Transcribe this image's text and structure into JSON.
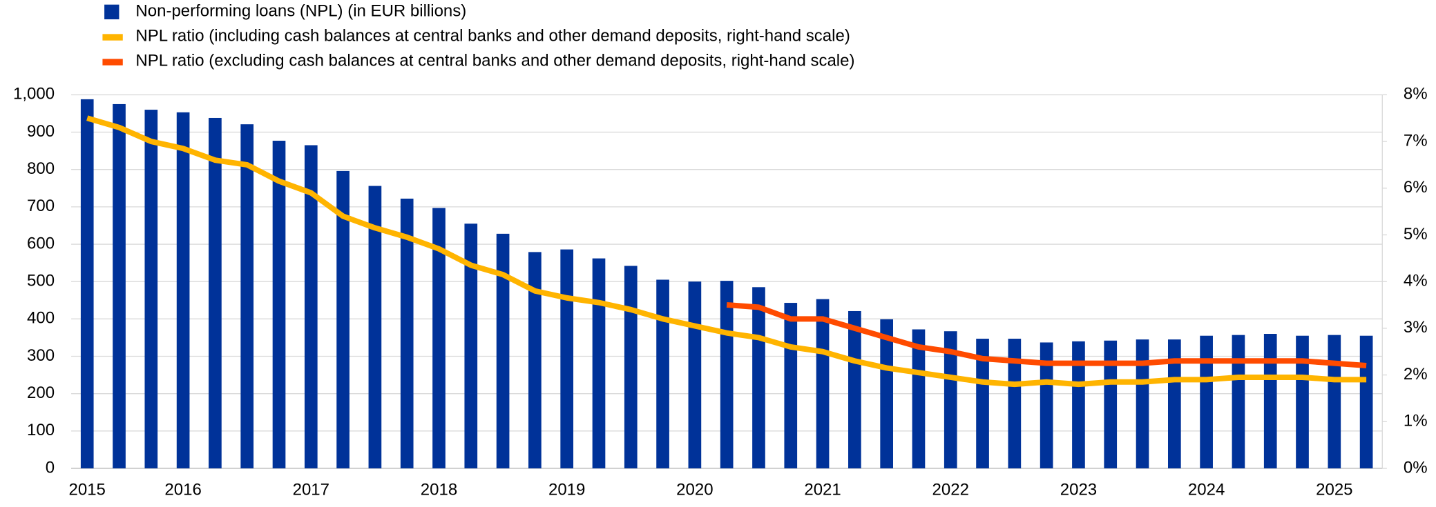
{
  "chart_data": {
    "type": "bar-line",
    "categories": [
      "2015",
      null,
      null,
      "2016",
      null,
      null,
      null,
      "2017",
      null,
      null,
      null,
      "2018",
      null,
      null,
      null,
      "2019",
      null,
      null,
      null,
      "2020",
      null,
      null,
      null,
      "2021",
      null,
      null,
      null,
      "2022",
      null,
      null,
      null,
      "2023",
      null,
      null,
      null,
      "2024",
      null,
      null,
      null,
      "2025",
      null
    ],
    "series": [
      {
        "name": "Non-performing loans (NPL) (in EUR billions)",
        "type": "bar",
        "color": "#003299",
        "values": [
          988,
          975,
          960,
          953,
          938,
          921,
          877,
          865,
          796,
          756,
          722,
          697,
          655,
          628,
          579,
          586,
          562,
          542,
          505,
          500,
          502,
          485,
          443,
          453,
          421,
          399,
          372,
          367,
          347,
          347,
          337,
          340,
          342,
          345,
          345,
          355,
          357,
          360,
          355,
          357,
          355
        ]
      },
      {
        "name": "NPL ratio (including cash balances at central banks and other demand deposits, right-hand scale)",
        "type": "line",
        "axis": "y2",
        "color": "#ffb400",
        "values": [
          7.5,
          7.3,
          7.0,
          6.85,
          6.6,
          6.5,
          6.15,
          5.9,
          5.4,
          5.15,
          4.95,
          4.7,
          4.35,
          4.15,
          3.8,
          3.65,
          3.55,
          3.4,
          3.2,
          3.05,
          2.9,
          2.8,
          2.6,
          2.5,
          2.3,
          2.15,
          2.05,
          1.95,
          1.85,
          1.8,
          1.85,
          1.8,
          1.85,
          1.85,
          1.9,
          1.9,
          1.95,
          1.95,
          1.95,
          1.9,
          1.9
        ]
      },
      {
        "name": "NPL ratio (excluding cash balances at central banks and other demand deposits, right-hand scale)",
        "type": "line",
        "axis": "y2",
        "color": "#ff4b00",
        "values": [
          null,
          null,
          null,
          null,
          null,
          null,
          null,
          null,
          null,
          null,
          null,
          null,
          null,
          null,
          null,
          null,
          null,
          null,
          null,
          null,
          3.5,
          3.45,
          3.2,
          3.2,
          3.0,
          2.8,
          2.6,
          2.5,
          2.35,
          2.3,
          2.25,
          2.25,
          2.25,
          2.25,
          2.3,
          2.3,
          2.3,
          2.3,
          2.3,
          2.25,
          2.2
        ]
      }
    ],
    "ylim": [
      0,
      1000
    ],
    "yticks": [
      0,
      100,
      200,
      300,
      400,
      500,
      600,
      700,
      800,
      900,
      {
        "value": 1000,
        "label": "1,000"
      }
    ],
    "y2lim": [
      0,
      8
    ],
    "y2ticks": [
      {
        "value": 0,
        "label": "0%"
      },
      {
        "value": 1,
        "label": "1%"
      },
      {
        "value": 2,
        "label": "2%"
      },
      {
        "value": 3,
        "label": "3%"
      },
      {
        "value": 4,
        "label": "4%"
      },
      {
        "value": 5,
        "label": "5%"
      },
      {
        "value": 6,
        "label": "6%"
      },
      {
        "value": 7,
        "label": "7%"
      },
      {
        "value": 8,
        "label": "8%"
      }
    ],
    "grid": true,
    "legend": "top-left"
  }
}
